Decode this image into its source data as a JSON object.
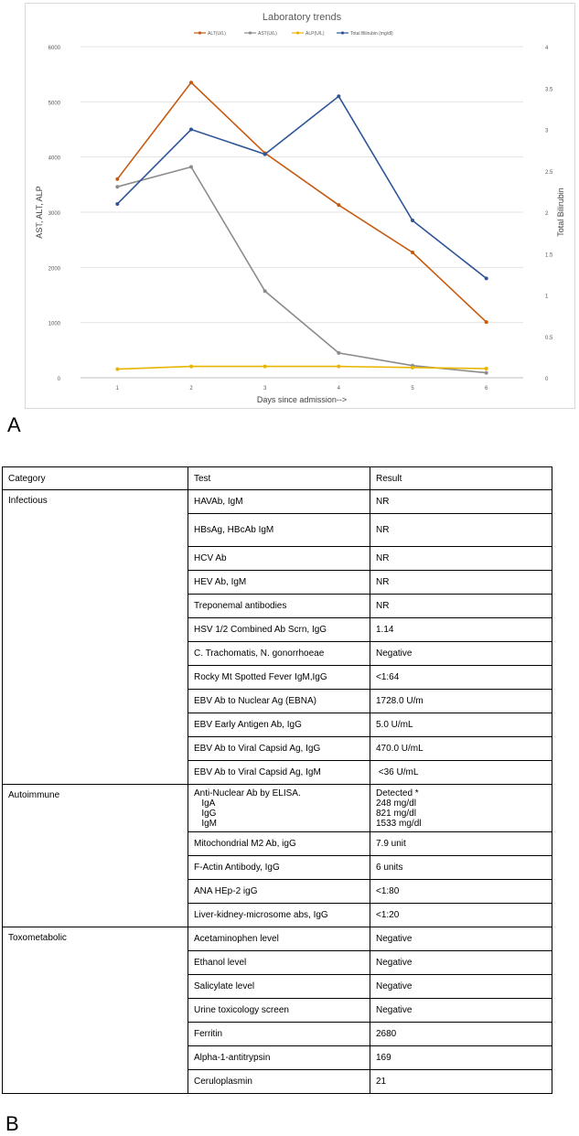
{
  "panel_a_label": "A",
  "panel_b_label": "B",
  "chart_data": {
    "type": "line",
    "title": "Laboratory trends",
    "xlabel": "Days since admission-->",
    "ylabel": "AST, ALT, ALP",
    "y2label": "Total Bilirubin",
    "x": [
      1,
      2,
      3,
      4,
      5,
      6
    ],
    "x_ticks": [
      "1",
      "2",
      "3",
      "4",
      "5",
      "6"
    ],
    "ylim": [
      0,
      6000
    ],
    "y_ticks": [
      "0",
      "1000",
      "2000",
      "3000",
      "4000",
      "5000",
      "6000"
    ],
    "y2lim": [
      0,
      4
    ],
    "y2_ticks": [
      "0",
      "0.5",
      "1",
      "1.5",
      "2",
      "2.5",
      "3",
      "3.5",
      "4"
    ],
    "grid": true,
    "legend_position": "top",
    "series": [
      {
        "name": "ALT(U/L)",
        "color": "#c55a11",
        "axis": "left",
        "values": [
          3600,
          5350,
          4070,
          3130,
          2270,
          1010
        ]
      },
      {
        "name": "AST(U/L)",
        "color": "#8c8c8c",
        "axis": "left",
        "values": [
          3460,
          3820,
          1570,
          450,
          220,
          90
        ]
      },
      {
        "name": "ALP(U/L)",
        "color": "#e8b400",
        "axis": "left",
        "values": [
          155,
          205,
          205,
          205,
          185,
          165
        ]
      },
      {
        "name": "Total Bilirubin (mg/dl)",
        "color": "#2e5597",
        "axis": "right",
        "values": [
          2.1,
          3.0,
          2.7,
          3.4,
          1.9,
          1.2
        ]
      }
    ]
  },
  "table": {
    "headers": [
      "Category",
      "Test",
      "Result"
    ],
    "rows": [
      {
        "category": "Infectious",
        "test": "HAVAb, IgM",
        "result": "NR"
      },
      {
        "category": "",
        "test": "HBsAg, HBcAb IgM",
        "result": "NR"
      },
      {
        "category": "",
        "test": "HCV Ab",
        "result": "NR"
      },
      {
        "category": "",
        "test": "HEV Ab, IgM",
        "result": "NR"
      },
      {
        "category": "",
        "test": "Treponemal antibodies",
        "result": "NR"
      },
      {
        "category": "",
        "test": "HSV 1/2 Combined Ab Scrn, IgG",
        "result": "1.14"
      },
      {
        "category": "",
        "test": "C. Trachomatis, N. gonorrhoeae",
        "result": "Negative"
      },
      {
        "category": "",
        "test": "Rocky Mt Spotted Fever IgM,IgG",
        "result": "<1:64"
      },
      {
        "category": "",
        "test": "EBV Ab to Nuclear Ag (EBNA)",
        "result": "1728.0 U/m"
      },
      {
        "category": "",
        "test": "EBV Early Antigen Ab, IgG",
        "result": "5.0 U/mL"
      },
      {
        "category": "",
        "test": "EBV Ab to Viral Capsid Ag, IgG",
        "result": "470.0 U/mL"
      },
      {
        "category": "",
        "test": "EBV Ab to Viral Capsid Ag, IgM",
        "result": " <36 U/mL"
      },
      {
        "category": "Autoimmune",
        "test": "Anti-Nuclear Ab by ELISA.\n   IgA\n   IgG\n   IgM",
        "result": "Detected *\n248 mg/dl\n821 mg/dl\n1533 mg/dl"
      },
      {
        "category": "",
        "test": "Mitochondrial M2 Ab, igG",
        "result": "7.9 unit"
      },
      {
        "category": "",
        "test": "F-Actin Antibody, IgG",
        "result": "6 units"
      },
      {
        "category": "",
        "test": "ANA HEp-2 igG",
        "result": "<1:80"
      },
      {
        "category": "",
        "test": "Liver-kidney-microsome abs, IgG",
        "result": "<1:20"
      },
      {
        "category": "Toxometabolic",
        "test": "Acetaminophen level",
        "result": "Negative"
      },
      {
        "category": "",
        "test": "Ethanol level",
        "result": "Negative"
      },
      {
        "category": "",
        "test": "Salicylate level",
        "result": "Negative"
      },
      {
        "category": "",
        "test": "Urine toxicology screen",
        "result": "Negative"
      },
      {
        "category": "",
        "test": "Ferritin",
        "result": "2680"
      },
      {
        "category": "",
        "test": "Alpha-1-antitrypsin",
        "result": "169"
      },
      {
        "category": "",
        "test": "Ceruloplasmin",
        "result": "21"
      }
    ]
  }
}
